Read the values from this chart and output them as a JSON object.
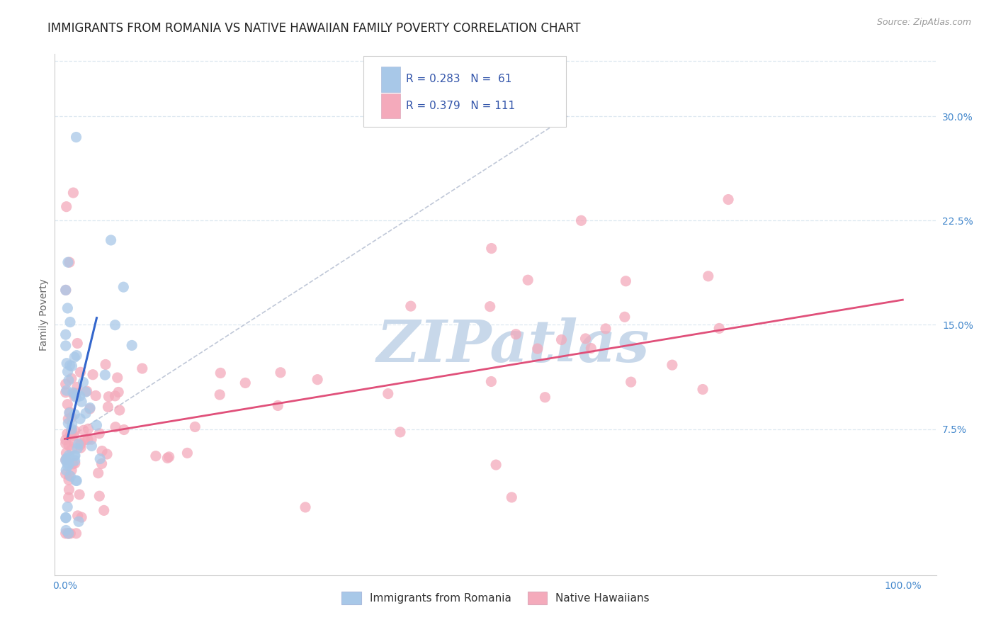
{
  "title": "IMMIGRANTS FROM ROMANIA VS NATIVE HAWAIIAN FAMILY POVERTY CORRELATION CHART",
  "source": "Source: ZipAtlas.com",
  "ylabel": "Family Poverty",
  "y_tick_labels": [
    "7.5%",
    "15.0%",
    "22.5%",
    "30.0%"
  ],
  "y_ticks": [
    0.075,
    0.15,
    0.225,
    0.3
  ],
  "x_tick_labels": [
    "0.0%",
    "100.0%"
  ],
  "x_ticks": [
    0.0,
    1.0
  ],
  "xlim": [
    -0.012,
    1.04
  ],
  "ylim": [
    -0.03,
    0.345
  ],
  "watermark": "ZIPatlas",
  "legend_r1": "R = 0.283",
  "legend_n1": "N =  61",
  "legend_r2": "R = 0.379",
  "legend_n2": "N = 111",
  "blue_scatter_color": "#a8c8e8",
  "pink_scatter_color": "#f4aabb",
  "blue_line_color": "#3366cc",
  "pink_line_color": "#e0507a",
  "dashed_line_color": "#c0c8d8",
  "grid_color": "#dde8f0",
  "background_color": "#ffffff",
  "title_fontsize": 12,
  "axis_label_fontsize": 10,
  "tick_fontsize": 10,
  "legend_fontsize": 11,
  "source_fontsize": 9,
  "watermark_color": "#c8d8ea",
  "watermark_fontsize": 60,
  "blue_line_x": [
    0.003,
    0.038
  ],
  "blue_line_y": [
    0.068,
    0.155
  ],
  "dashed_line_x": [
    0.003,
    0.6
  ],
  "dashed_line_y": [
    0.068,
    0.3
  ],
  "pink_line_x": [
    0.0,
    1.0
  ],
  "pink_line_y": [
    0.068,
    0.168
  ]
}
